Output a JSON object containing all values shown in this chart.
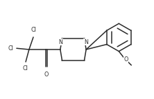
{
  "background": "#ffffff",
  "line_color": "#2a2a2a",
  "line_width": 1.1,
  "font_size": 5.8,
  "figsize": [
    2.22,
    1.44
  ],
  "dpi": 100,
  "xlim": [
    0,
    10
  ],
  "ylim": [
    0,
    6.5
  ]
}
